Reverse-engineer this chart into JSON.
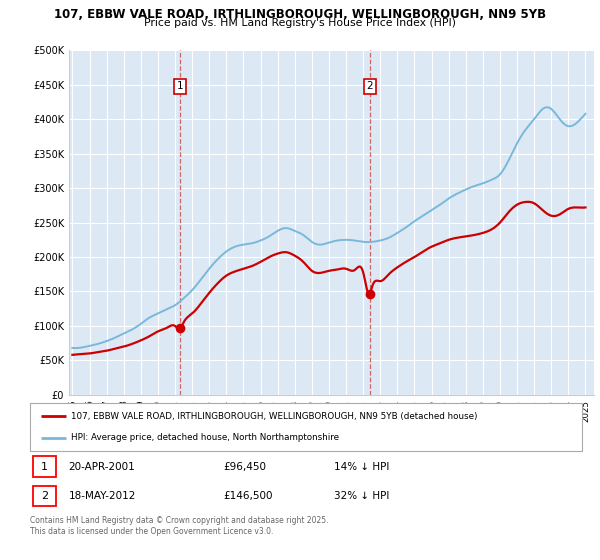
{
  "title_line1": "107, EBBW VALE ROAD, IRTHLINGBOROUGH, WELLINGBOROUGH, NN9 5YB",
  "title_line2": "Price paid vs. HM Land Registry's House Price Index (HPI)",
  "background_color": "#dce9f5",
  "ylim": [
    0,
    500000
  ],
  "yticks": [
    0,
    50000,
    100000,
    150000,
    200000,
    250000,
    300000,
    350000,
    400000,
    450000,
    500000
  ],
  "ytick_labels": [
    "£0",
    "£50K",
    "£100K",
    "£150K",
    "£200K",
    "£250K",
    "£300K",
    "£350K",
    "£400K",
    "£450K",
    "£500K"
  ],
  "hpi_color": "#7ab8d9",
  "price_color": "#cc0000",
  "marker1_year": 2001.3,
  "marker1_label": "1",
  "marker1_date": "20-APR-2001",
  "marker1_price": "£96,450",
  "marker1_hpi_text": "14% ↓ HPI",
  "marker2_year": 2012.4,
  "marker2_label": "2",
  "marker2_date": "18-MAY-2012",
  "marker2_price": "£146,500",
  "marker2_hpi_text": "32% ↓ HPI",
  "legend_line1": "107, EBBW VALE ROAD, IRTHLINGBOROUGH, WELLINGBOROUGH, NN9 5YB (detached house)",
  "legend_line2": "HPI: Average price, detached house, North Northamptonshire",
  "footer": "Contains HM Land Registry data © Crown copyright and database right 2025.\nThis data is licensed under the Open Government Licence v3.0.",
  "xmin": 1994.8,
  "xmax": 2025.5,
  "years_hpi": [
    1995,
    1995.5,
    1996,
    1996.5,
    1997,
    1997.5,
    1998,
    1998.5,
    1999,
    1999.5,
    2000,
    2000.5,
    2001,
    2001.5,
    2002,
    2002.5,
    2003,
    2003.5,
    2004,
    2004.5,
    2005,
    2005.5,
    2006,
    2006.5,
    2007,
    2007.5,
    2008,
    2008.5,
    2009,
    2009.5,
    2010,
    2010.5,
    2011,
    2011.5,
    2012,
    2012.5,
    2013,
    2013.5,
    2014,
    2014.5,
    2015,
    2015.5,
    2016,
    2016.5,
    2017,
    2017.5,
    2018,
    2018.5,
    2019,
    2019.5,
    2020,
    2020.5,
    2021,
    2021.5,
    2022,
    2022.5,
    2023,
    2023.5,
    2024,
    2024.5,
    2025
  ],
  "hpi_vals": [
    68000,
    68500,
    71000,
    74000,
    78000,
    83000,
    89000,
    95000,
    103000,
    112000,
    118000,
    124000,
    130000,
    140000,
    152000,
    167000,
    183000,
    197000,
    208000,
    215000,
    218000,
    220000,
    224000,
    230000,
    238000,
    242000,
    238000,
    232000,
    222000,
    218000,
    221000,
    224000,
    225000,
    224000,
    222000,
    222000,
    224000,
    228000,
    235000,
    243000,
    252000,
    260000,
    268000,
    276000,
    285000,
    292000,
    298000,
    303000,
    307000,
    312000,
    320000,
    340000,
    365000,
    385000,
    400000,
    415000,
    415000,
    400000,
    390000,
    395000,
    408000
  ],
  "years_price": [
    1995,
    1995.5,
    1996,
    1996.5,
    1997,
    1997.5,
    1998,
    1998.5,
    1999,
    1999.5,
    2000,
    2000.5,
    2001,
    2001.3,
    2001.5,
    2002,
    2002.5,
    2003,
    2003.5,
    2004,
    2004.5,
    2005,
    2005.5,
    2006,
    2006.5,
    2007,
    2007.5,
    2008,
    2008.5,
    2009,
    2009.5,
    2010,
    2010.5,
    2011,
    2011.5,
    2012,
    2012.4,
    2012.5,
    2013,
    2013.5,
    2014,
    2014.5,
    2015,
    2015.5,
    2016,
    2016.5,
    2017,
    2017.5,
    2018,
    2018.5,
    2019,
    2019.5,
    2020,
    2020.5,
    2021,
    2021.5,
    2022,
    2022.5,
    2023,
    2023.5,
    2024,
    2024.5,
    2025
  ],
  "price_vals": [
    58000,
    59000,
    60000,
    62000,
    64000,
    67000,
    70000,
    74000,
    79000,
    85000,
    92000,
    97000,
    100000,
    96450,
    105000,
    118000,
    132000,
    148000,
    162000,
    173000,
    179000,
    183000,
    187000,
    193000,
    200000,
    205000,
    207000,
    202000,
    193000,
    180000,
    177000,
    180000,
    182000,
    183000,
    181000,
    178000,
    146500,
    155000,
    165000,
    175000,
    185000,
    193000,
    200000,
    208000,
    215000,
    220000,
    225000,
    228000,
    230000,
    232000,
    235000,
    240000,
    250000,
    265000,
    276000,
    280000,
    278000,
    268000,
    260000,
    262000,
    270000,
    272000,
    272000
  ]
}
